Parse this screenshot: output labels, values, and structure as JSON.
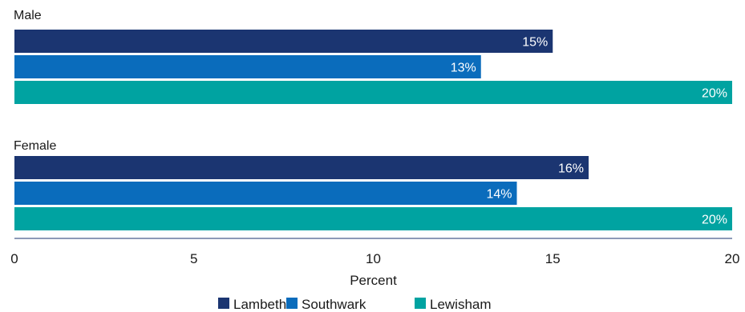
{
  "chart_data": {
    "type": "bar",
    "orientation": "horizontal",
    "categories": [
      "Male",
      "Female"
    ],
    "series": [
      {
        "name": "Lambeth",
        "color": "#1b3571",
        "values": [
          15,
          16
        ],
        "labels": [
          "15%",
          "16%"
        ]
      },
      {
        "name": "Southwark",
        "color": "#0a6cbc",
        "values": [
          13,
          14
        ],
        "labels": [
          "13%",
          "14%"
        ]
      },
      {
        "name": "Lewisham",
        "color": "#00a3a1",
        "values": [
          20,
          20
        ],
        "labels": [
          "20%",
          "20%"
        ]
      }
    ],
    "xlabel": "Percent",
    "xlim": [
      0,
      20
    ],
    "xticks": [
      "0",
      "5",
      "10",
      "15",
      "20"
    ],
    "grid": false,
    "legend_position": "bottom"
  }
}
